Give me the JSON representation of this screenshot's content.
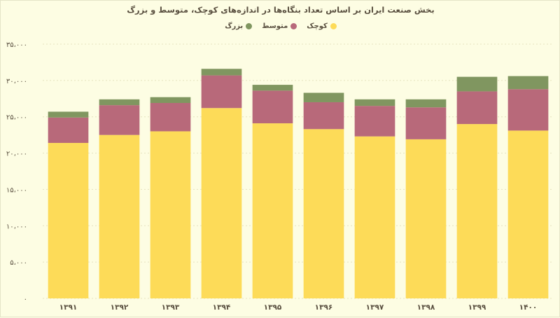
{
  "chart_data": {
    "type": "bar",
    "stacked": true,
    "title": "بخش صنعت ایران بر اساس تعداد بنگاه‌ها در اندازه‌های کوچک، متوسط و بزرگ",
    "categories": [
      "۱۳۹۱",
      "۱۳۹۲",
      "۱۳۹۳",
      "۱۳۹۴",
      "۱۳۹۵",
      "۱۳۹۶",
      "۱۳۹۷",
      "۱۳۹۸",
      "۱۳۹۹",
      "۱۴۰۰"
    ],
    "series": [
      {
        "name": "کوچک",
        "color": "#fddb58",
        "values": [
          21400,
          22500,
          23000,
          26200,
          24100,
          23300,
          22300,
          21900,
          24000,
          23100
        ]
      },
      {
        "name": "متوسط",
        "color": "#b8697a",
        "values": [
          3500,
          4100,
          3900,
          4500,
          4500,
          3700,
          4200,
          4400,
          4500,
          5700
        ]
      },
      {
        "name": "بزرگ",
        "color": "#809660",
        "values": [
          800,
          800,
          800,
          900,
          800,
          1300,
          900,
          1100,
          2000,
          1800
        ]
      }
    ],
    "ylim": [
      0,
      35000
    ],
    "yticks": [
      0,
      5000,
      10000,
      15000,
      20000,
      25000,
      30000,
      35000
    ],
    "ytick_labels": [
      "۰",
      "۵،۰۰۰",
      "۱۰،۰۰۰",
      "۱۵،۰۰۰",
      "۲۰،۰۰۰",
      "۲۵،۰۰۰",
      "۳۰،۰۰۰",
      "۳۵،۰۰۰"
    ],
    "grid": true,
    "legend_position": "top-center",
    "xlabel": "",
    "ylabel": ""
  }
}
